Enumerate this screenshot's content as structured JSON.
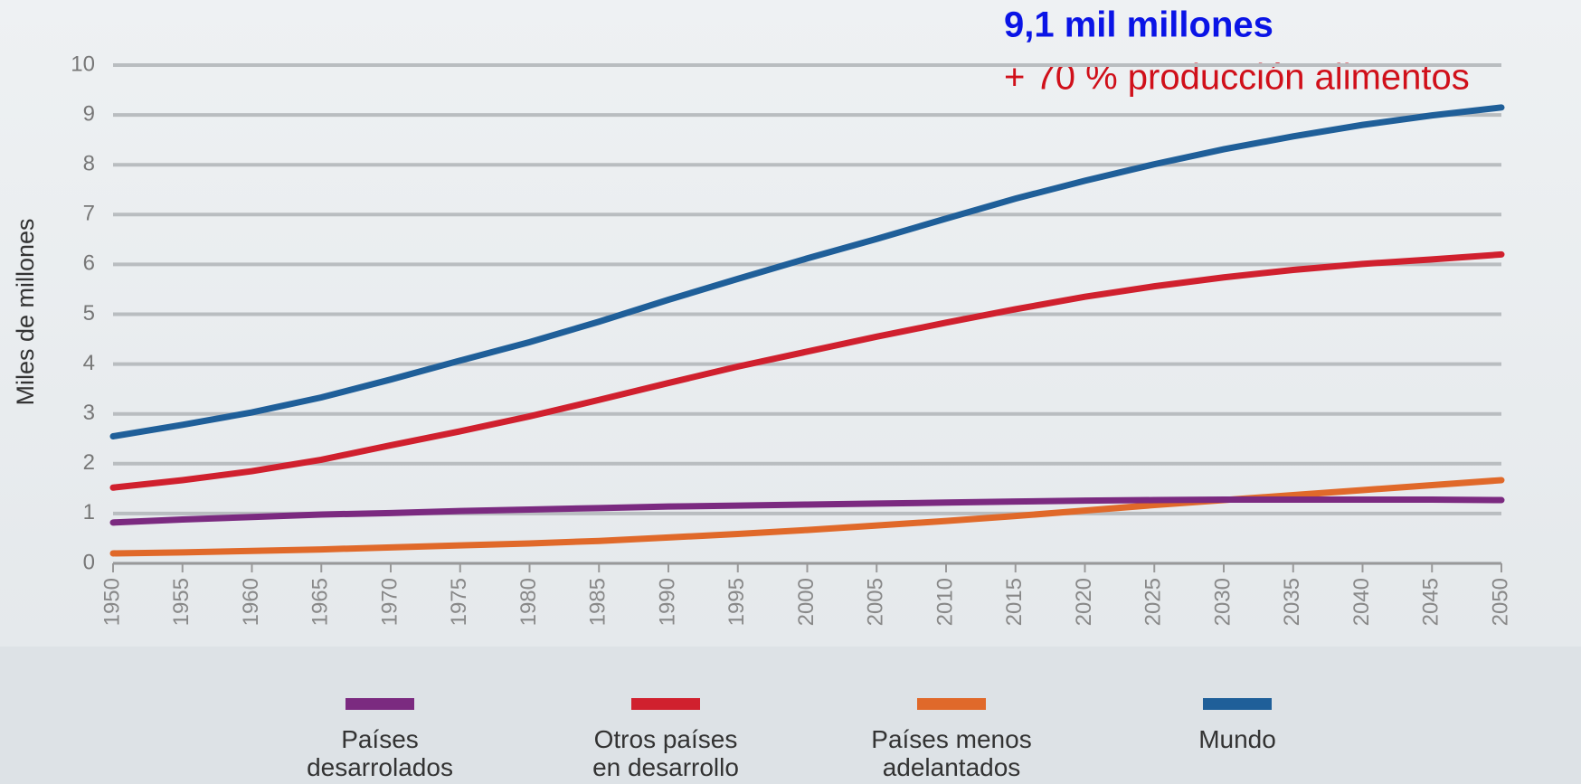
{
  "chart_data": {
    "type": "line",
    "ylabel": "Miles de millones",
    "annotations": [
      {
        "text": "9,1 mil millones",
        "color": "#0a14e6"
      },
      {
        "text": "+ 70 % producción alimentos",
        "color": "#d0101a"
      }
    ],
    "x": [
      1950,
      1955,
      1960,
      1965,
      1970,
      1975,
      1980,
      1985,
      1990,
      1995,
      2000,
      2005,
      2010,
      2015,
      2020,
      2025,
      2030,
      2035,
      2040,
      2045,
      2050
    ],
    "xlim": [
      1950,
      2050
    ],
    "xticks": [
      1950,
      1955,
      1960,
      1965,
      1970,
      1975,
      1980,
      1985,
      1990,
      1995,
      2000,
      2005,
      2010,
      2015,
      2020,
      2025,
      2030,
      2035,
      2040,
      2045,
      2050
    ],
    "ylim": [
      0,
      10
    ],
    "yticks": [
      0,
      1,
      2,
      3,
      4,
      5,
      6,
      7,
      8,
      9,
      10
    ],
    "grid": true,
    "legend": "bottom",
    "series": [
      {
        "name": "Países desarrolados",
        "color": "#7b2a80",
        "values": [
          0.82,
          0.88,
          0.93,
          0.98,
          1.01,
          1.05,
          1.08,
          1.11,
          1.14,
          1.16,
          1.18,
          1.2,
          1.22,
          1.24,
          1.26,
          1.27,
          1.28,
          1.28,
          1.28,
          1.28,
          1.27
        ]
      },
      {
        "name": "Otros países en desarrollo",
        "color": "#d0202e",
        "values": [
          1.52,
          1.67,
          1.85,
          2.08,
          2.37,
          2.65,
          2.95,
          3.28,
          3.62,
          3.95,
          4.25,
          4.55,
          4.83,
          5.1,
          5.35,
          5.56,
          5.74,
          5.89,
          6.01,
          6.1,
          6.2
        ]
      },
      {
        "name": "Países menos adelantados",
        "color": "#e0692a",
        "values": [
          0.2,
          0.22,
          0.25,
          0.28,
          0.32,
          0.36,
          0.4,
          0.45,
          0.52,
          0.59,
          0.67,
          0.76,
          0.85,
          0.95,
          1.06,
          1.17,
          1.27,
          1.37,
          1.47,
          1.57,
          1.67
        ]
      },
      {
        "name": "Mundo",
        "color": "#1f5f99",
        "values": [
          2.55,
          2.78,
          3.03,
          3.33,
          3.69,
          4.07,
          4.44,
          4.85,
          5.29,
          5.71,
          6.12,
          6.51,
          6.92,
          7.32,
          7.68,
          8.01,
          8.31,
          8.57,
          8.8,
          8.99,
          9.15
        ]
      }
    ]
  }
}
